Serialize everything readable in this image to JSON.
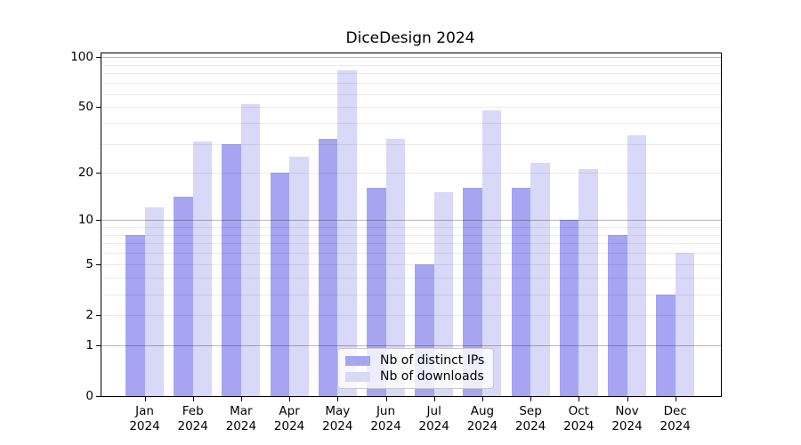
{
  "chart_data": {
    "type": "bar",
    "title": "DiceDesign 2024",
    "categories": [
      "Jan 2024",
      "Feb 2024",
      "Mar 2024",
      "Apr 2024",
      "May 2024",
      "Jun 2024",
      "Jul 2024",
      "Aug 2024",
      "Sep 2024",
      "Oct 2024",
      "Nov 2024",
      "Dec 2024"
    ],
    "series": [
      {
        "name": "Nb of distinct IPs",
        "color": "#a5a5f2",
        "values": [
          8,
          14,
          30,
          20,
          32,
          16,
          5,
          16,
          16,
          10,
          8,
          3
        ]
      },
      {
        "name": "Nb of downloads",
        "color": "#d8d8f8",
        "values": [
          12,
          31,
          52,
          25,
          83,
          32,
          15,
          48,
          23,
          21,
          34,
          6
        ]
      }
    ],
    "yscale": "log1p",
    "y_ticks": [
      0,
      1,
      2,
      5,
      10,
      20,
      50,
      100
    ],
    "y_tick_labels": [
      "0",
      "1",
      "2",
      "5",
      "10",
      "20",
      "50",
      "100"
    ],
    "ylim": [
      0,
      105
    ],
    "xlabel": "",
    "ylabel": "",
    "grid": "horizontal",
    "legend_position": "lower center"
  },
  "colors": {
    "bar_distinct_ips": "#a5a5f2",
    "bar_downloads": "#d8d8f8",
    "major_grid": "#b5b5b5",
    "minor_grid": "#ebebeb",
    "spine": "#000000",
    "legend_border": "#c9c9c9",
    "background": "#ffffff"
  }
}
